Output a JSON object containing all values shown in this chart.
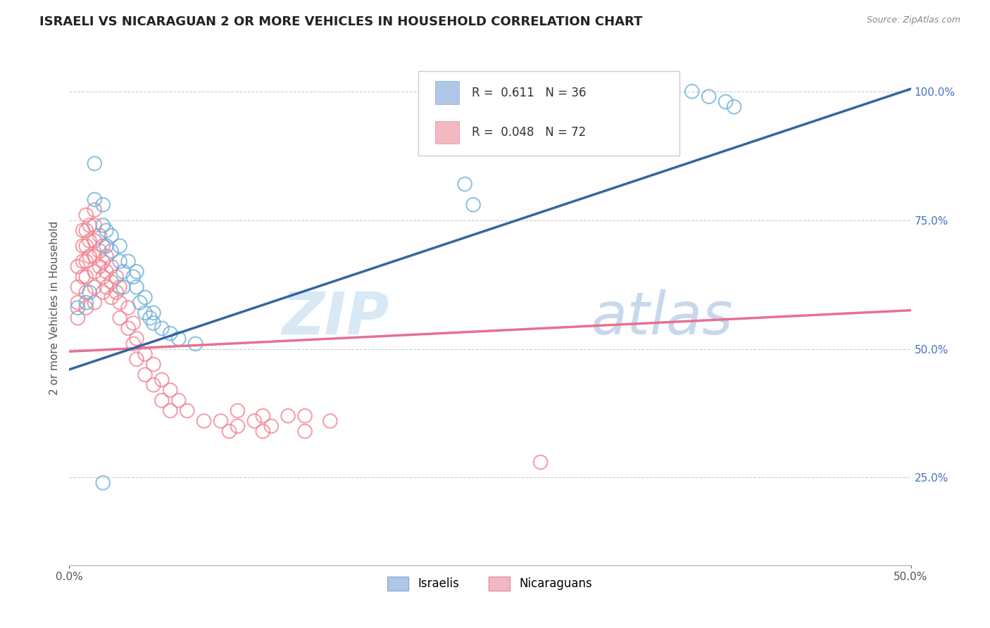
{
  "title": "ISRAELI VS NICARAGUAN 2 OR MORE VEHICLES IN HOUSEHOLD CORRELATION CHART",
  "source": "Source: ZipAtlas.com",
  "ylabel": "2 or more Vehicles in Household",
  "ytick_labels": [
    "25.0%",
    "50.0%",
    "75.0%",
    "100.0%"
  ],
  "ytick_values": [
    0.25,
    0.5,
    0.75,
    1.0
  ],
  "xlim": [
    0.0,
    0.5
  ],
  "ylim": [
    0.08,
    1.08
  ],
  "israeli_color": "#6aaed6",
  "nicaraguan_color": "#f08090",
  "israeli_line_color": "#3465a4",
  "nicaraguan_line_color": "#e87090",
  "legend_isr_color": "#aec6e8",
  "legend_nic_color": "#f4b8c1",
  "watermark_color": "#d8e8f5",
  "isr_line_x0": 0.0,
  "isr_line_y0": 0.46,
  "isr_line_x1": 0.5,
  "isr_line_y1": 1.005,
  "nic_line_x0": 0.0,
  "nic_line_y0": 0.495,
  "nic_line_x1": 0.5,
  "nic_line_y1": 0.575,
  "israeli_scatter": [
    [
      0.005,
      0.58
    ],
    [
      0.01,
      0.59
    ],
    [
      0.012,
      0.61
    ],
    [
      0.015,
      0.79
    ],
    [
      0.015,
      0.86
    ],
    [
      0.02,
      0.74
    ],
    [
      0.02,
      0.78
    ],
    [
      0.022,
      0.7
    ],
    [
      0.022,
      0.73
    ],
    [
      0.025,
      0.69
    ],
    [
      0.025,
      0.72
    ],
    [
      0.03,
      0.67
    ],
    [
      0.03,
      0.7
    ],
    [
      0.032,
      0.65
    ],
    [
      0.032,
      0.62
    ],
    [
      0.035,
      0.67
    ],
    [
      0.038,
      0.64
    ],
    [
      0.04,
      0.62
    ],
    [
      0.04,
      0.65
    ],
    [
      0.042,
      0.59
    ],
    [
      0.045,
      0.57
    ],
    [
      0.045,
      0.6
    ],
    [
      0.048,
      0.56
    ],
    [
      0.05,
      0.55
    ],
    [
      0.05,
      0.57
    ],
    [
      0.055,
      0.54
    ],
    [
      0.06,
      0.53
    ],
    [
      0.065,
      0.52
    ],
    [
      0.02,
      0.24
    ],
    [
      0.075,
      0.51
    ],
    [
      0.235,
      0.82
    ],
    [
      0.24,
      0.78
    ],
    [
      0.37,
      1.0
    ],
    [
      0.38,
      0.99
    ],
    [
      0.39,
      0.98
    ],
    [
      0.395,
      0.97
    ]
  ],
  "nicaraguan_scatter": [
    [
      0.005,
      0.66
    ],
    [
      0.005,
      0.62
    ],
    [
      0.005,
      0.59
    ],
    [
      0.005,
      0.56
    ],
    [
      0.008,
      0.73
    ],
    [
      0.008,
      0.7
    ],
    [
      0.008,
      0.67
    ],
    [
      0.008,
      0.64
    ],
    [
      0.01,
      0.76
    ],
    [
      0.01,
      0.73
    ],
    [
      0.01,
      0.7
    ],
    [
      0.01,
      0.67
    ],
    [
      0.01,
      0.64
    ],
    [
      0.01,
      0.61
    ],
    [
      0.01,
      0.58
    ],
    [
      0.012,
      0.74
    ],
    [
      0.012,
      0.71
    ],
    [
      0.012,
      0.68
    ],
    [
      0.015,
      0.77
    ],
    [
      0.015,
      0.74
    ],
    [
      0.015,
      0.71
    ],
    [
      0.015,
      0.68
    ],
    [
      0.015,
      0.65
    ],
    [
      0.015,
      0.62
    ],
    [
      0.015,
      0.59
    ],
    [
      0.018,
      0.72
    ],
    [
      0.018,
      0.69
    ],
    [
      0.018,
      0.66
    ],
    [
      0.02,
      0.7
    ],
    [
      0.02,
      0.67
    ],
    [
      0.02,
      0.64
    ],
    [
      0.02,
      0.61
    ],
    [
      0.022,
      0.68
    ],
    [
      0.022,
      0.65
    ],
    [
      0.022,
      0.62
    ],
    [
      0.025,
      0.66
    ],
    [
      0.025,
      0.63
    ],
    [
      0.025,
      0.6
    ],
    [
      0.028,
      0.64
    ],
    [
      0.028,
      0.61
    ],
    [
      0.03,
      0.62
    ],
    [
      0.03,
      0.59
    ],
    [
      0.03,
      0.56
    ],
    [
      0.035,
      0.58
    ],
    [
      0.035,
      0.54
    ],
    [
      0.038,
      0.55
    ],
    [
      0.038,
      0.51
    ],
    [
      0.04,
      0.52
    ],
    [
      0.04,
      0.48
    ],
    [
      0.045,
      0.49
    ],
    [
      0.045,
      0.45
    ],
    [
      0.05,
      0.47
    ],
    [
      0.05,
      0.43
    ],
    [
      0.055,
      0.44
    ],
    [
      0.055,
      0.4
    ],
    [
      0.06,
      0.42
    ],
    [
      0.06,
      0.38
    ],
    [
      0.065,
      0.4
    ],
    [
      0.07,
      0.38
    ],
    [
      0.08,
      0.36
    ],
    [
      0.09,
      0.36
    ],
    [
      0.095,
      0.34
    ],
    [
      0.1,
      0.38
    ],
    [
      0.1,
      0.35
    ],
    [
      0.11,
      0.36
    ],
    [
      0.115,
      0.37
    ],
    [
      0.115,
      0.34
    ],
    [
      0.12,
      0.35
    ],
    [
      0.13,
      0.37
    ],
    [
      0.14,
      0.37
    ],
    [
      0.14,
      0.34
    ],
    [
      0.155,
      0.36
    ],
    [
      0.28,
      0.28
    ]
  ]
}
